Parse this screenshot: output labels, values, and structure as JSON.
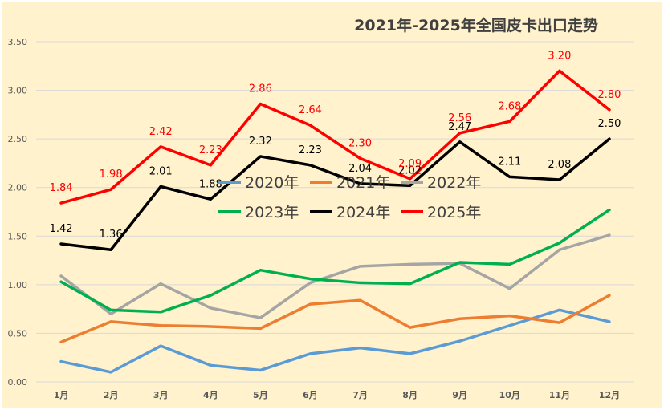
{
  "chart_data": {
    "type": "line",
    "title": "2021年-2025年全国皮卡出口走势",
    "xlabel": "",
    "ylabel": "",
    "categories": [
      "1月",
      "2月",
      "3月",
      "4月",
      "5月",
      "6月",
      "7月",
      "8月",
      "9月",
      "10月",
      "11月",
      "12月"
    ],
    "ylim": [
      0,
      3.5
    ],
    "yticks": [
      "0.00",
      "0.50",
      "1.00",
      "1.50",
      "2.00",
      "2.50",
      "3.00",
      "3.50"
    ],
    "grid": true,
    "legend_position": "center",
    "background_color": "#FFF2CC",
    "series": [
      {
        "name": "2020年",
        "color": "#5B9BD5",
        "values": [
          0.21,
          0.1,
          0.37,
          0.17,
          0.12,
          0.29,
          0.35,
          0.29,
          0.42,
          0.58,
          0.74,
          0.62
        ],
        "labels": []
      },
      {
        "name": "2021年",
        "color": "#ED7D31",
        "values": [
          0.41,
          0.62,
          0.58,
          0.57,
          0.55,
          0.8,
          0.84,
          0.56,
          0.65,
          0.68,
          0.61,
          0.89
        ],
        "labels": []
      },
      {
        "name": "2022年",
        "color": "#A5A5A5",
        "values": [
          1.09,
          0.7,
          1.01,
          0.76,
          0.66,
          1.02,
          1.19,
          1.21,
          1.22,
          0.96,
          1.36,
          1.51
        ],
        "labels": []
      },
      {
        "name": "2023年",
        "color": "#00B050",
        "values": [
          1.03,
          0.74,
          0.72,
          0.89,
          1.15,
          1.06,
          1.02,
          1.01,
          1.23,
          1.21,
          1.43,
          1.77
        ],
        "labels": []
      },
      {
        "name": "2024年",
        "color": "#000000",
        "values": [
          1.42,
          1.36,
          2.01,
          1.88,
          2.32,
          2.23,
          2.04,
          2.02,
          2.47,
          2.11,
          2.08,
          2.5
        ],
        "labels": [
          "1.42",
          "1.36",
          "2.01",
          "1.88",
          "2.32",
          "2.23",
          "2.04",
          "2.02",
          "2.47",
          "2.11",
          "2.08",
          "2.50"
        ]
      },
      {
        "name": "2025年",
        "color": "#FF0000",
        "values": [
          1.84,
          1.98,
          2.42,
          2.23,
          2.86,
          2.64,
          2.3,
          2.09,
          2.56,
          2.68,
          3.2,
          2.8
        ],
        "labels": [
          "1.84",
          "1.98",
          "2.42",
          "2.23",
          "2.86",
          "2.64",
          "2.30",
          "2.09",
          "2.56",
          "2.68",
          "3.20",
          "2.80"
        ]
      }
    ]
  }
}
